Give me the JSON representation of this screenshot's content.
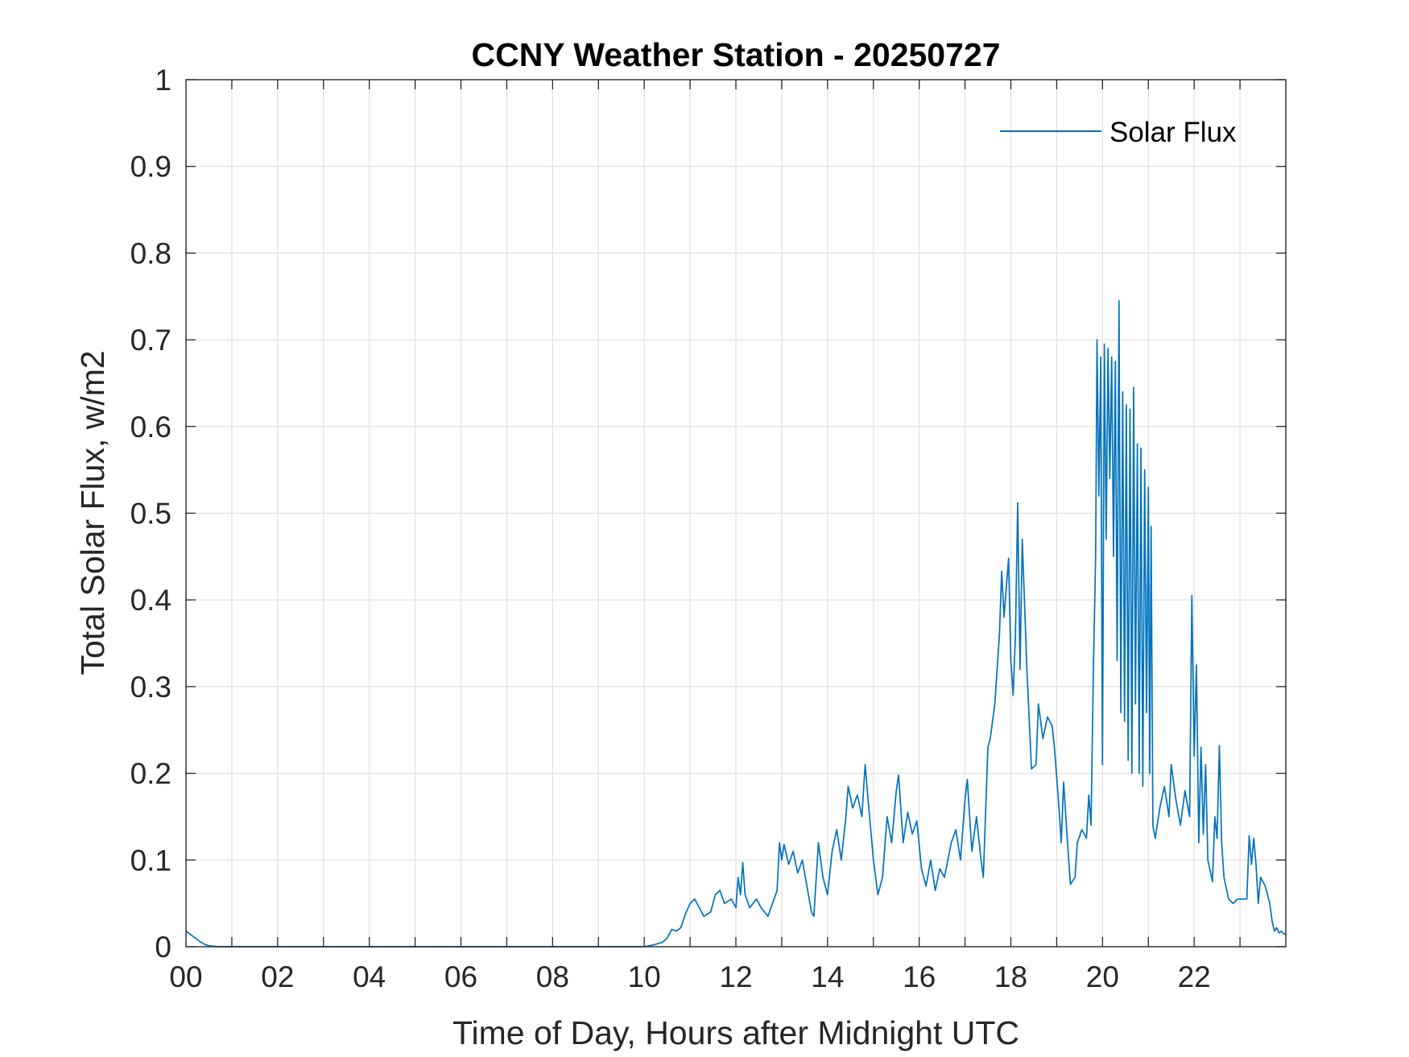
{
  "chart_data": {
    "type": "line",
    "title": "CCNY Weather Station - 20250727",
    "xlabel": "Time of Day, Hours after Midnight UTC",
    "ylabel": "Total Solar Flux, w/m2",
    "xlim": [
      0,
      24
    ],
    "ylim": [
      0,
      1
    ],
    "xticks": [
      0,
      2,
      4,
      6,
      8,
      10,
      12,
      14,
      16,
      18,
      20,
      22
    ],
    "xtick_labels": [
      "00",
      "02",
      "04",
      "06",
      "08",
      "10",
      "12",
      "14",
      "16",
      "18",
      "20",
      "22"
    ],
    "yticks": [
      0,
      0.1,
      0.2,
      0.3,
      0.4,
      0.5,
      0.6,
      0.7,
      0.8,
      0.9,
      1
    ],
    "ytick_labels": [
      "0",
      "0.1",
      "0.2",
      "0.3",
      "0.4",
      "0.5",
      "0.6",
      "0.7",
      "0.8",
      "0.9",
      "1"
    ],
    "grid": true,
    "legend": {
      "location": "top-right",
      "entries": [
        "Solar Flux"
      ]
    },
    "colors": {
      "series": "#0072BD",
      "axis": "#262626",
      "grid": "#e0e0e0"
    },
    "series": [
      {
        "name": "Solar Flux",
        "points": [
          [
            0.0,
            0.018
          ],
          [
            0.1,
            0.014
          ],
          [
            0.2,
            0.01
          ],
          [
            0.3,
            0.006
          ],
          [
            0.4,
            0.003
          ],
          [
            0.5,
            0.001
          ],
          [
            0.7,
            0.0
          ],
          [
            5.0,
            0.0
          ],
          [
            10.0,
            0.0
          ],
          [
            10.2,
            0.002
          ],
          [
            10.4,
            0.005
          ],
          [
            10.5,
            0.01
          ],
          [
            10.6,
            0.02
          ],
          [
            10.7,
            0.018
          ],
          [
            10.8,
            0.022
          ],
          [
            10.9,
            0.038
          ],
          [
            11.0,
            0.05
          ],
          [
            11.1,
            0.055
          ],
          [
            11.2,
            0.045
          ],
          [
            11.3,
            0.035
          ],
          [
            11.45,
            0.04
          ],
          [
            11.55,
            0.06
          ],
          [
            11.65,
            0.065
          ],
          [
            11.75,
            0.05
          ],
          [
            11.9,
            0.055
          ],
          [
            12.0,
            0.045
          ],
          [
            12.05,
            0.08
          ],
          [
            12.1,
            0.06
          ],
          [
            12.15,
            0.097
          ],
          [
            12.2,
            0.06
          ],
          [
            12.3,
            0.045
          ],
          [
            12.45,
            0.055
          ],
          [
            12.55,
            0.045
          ],
          [
            12.7,
            0.035
          ],
          [
            12.8,
            0.05
          ],
          [
            12.9,
            0.065
          ],
          [
            12.95,
            0.12
          ],
          [
            13.0,
            0.1
          ],
          [
            13.05,
            0.118
          ],
          [
            13.15,
            0.095
          ],
          [
            13.25,
            0.11
          ],
          [
            13.35,
            0.085
          ],
          [
            13.45,
            0.1
          ],
          [
            13.55,
            0.07
          ],
          [
            13.65,
            0.04
          ],
          [
            13.7,
            0.035
          ],
          [
            13.8,
            0.12
          ],
          [
            13.9,
            0.08
          ],
          [
            14.0,
            0.06
          ],
          [
            14.1,
            0.11
          ],
          [
            14.2,
            0.135
          ],
          [
            14.3,
            0.1
          ],
          [
            14.4,
            0.15
          ],
          [
            14.45,
            0.185
          ],
          [
            14.55,
            0.16
          ],
          [
            14.65,
            0.175
          ],
          [
            14.75,
            0.15
          ],
          [
            14.82,
            0.21
          ],
          [
            14.9,
            0.16
          ],
          [
            15.0,
            0.1
          ],
          [
            15.1,
            0.06
          ],
          [
            15.2,
            0.08
          ],
          [
            15.3,
            0.15
          ],
          [
            15.4,
            0.12
          ],
          [
            15.5,
            0.18
          ],
          [
            15.55,
            0.198
          ],
          [
            15.65,
            0.12
          ],
          [
            15.75,
            0.155
          ],
          [
            15.85,
            0.13
          ],
          [
            15.95,
            0.145
          ],
          [
            16.05,
            0.09
          ],
          [
            16.15,
            0.07
          ],
          [
            16.25,
            0.1
          ],
          [
            16.35,
            0.065
          ],
          [
            16.45,
            0.09
          ],
          [
            16.55,
            0.08
          ],
          [
            16.7,
            0.12
          ],
          [
            16.8,
            0.135
          ],
          [
            16.9,
            0.1
          ],
          [
            17.0,
            0.17
          ],
          [
            17.05,
            0.193
          ],
          [
            17.15,
            0.11
          ],
          [
            17.25,
            0.15
          ],
          [
            17.35,
            0.1
          ],
          [
            17.4,
            0.08
          ],
          [
            17.5,
            0.23
          ],
          [
            17.55,
            0.24
          ],
          [
            17.65,
            0.28
          ],
          [
            17.75,
            0.36
          ],
          [
            17.8,
            0.433
          ],
          [
            17.85,
            0.38
          ],
          [
            17.95,
            0.448
          ],
          [
            18.0,
            0.33
          ],
          [
            18.05,
            0.29
          ],
          [
            18.1,
            0.36
          ],
          [
            18.15,
            0.512
          ],
          [
            18.2,
            0.32
          ],
          [
            18.25,
            0.47
          ],
          [
            18.35,
            0.32
          ],
          [
            18.45,
            0.205
          ],
          [
            18.55,
            0.21
          ],
          [
            18.6,
            0.28
          ],
          [
            18.7,
            0.24
          ],
          [
            18.8,
            0.265
          ],
          [
            18.9,
            0.255
          ],
          [
            18.95,
            0.23
          ],
          [
            19.05,
            0.16
          ],
          [
            19.1,
            0.12
          ],
          [
            19.15,
            0.19
          ],
          [
            19.25,
            0.11
          ],
          [
            19.3,
            0.072
          ],
          [
            19.4,
            0.08
          ],
          [
            19.45,
            0.12
          ],
          [
            19.55,
            0.135
          ],
          [
            19.65,
            0.125
          ],
          [
            19.7,
            0.175
          ],
          [
            19.75,
            0.14
          ],
          [
            19.8,
            0.32
          ],
          [
            19.85,
            0.45
          ],
          [
            19.88,
            0.7
          ],
          [
            19.92,
            0.52
          ],
          [
            19.96,
            0.68
          ],
          [
            20.0,
            0.21
          ],
          [
            20.04,
            0.695
          ],
          [
            20.08,
            0.47
          ],
          [
            20.12,
            0.69
          ],
          [
            20.16,
            0.54
          ],
          [
            20.2,
            0.68
          ],
          [
            20.24,
            0.45
          ],
          [
            20.28,
            0.675
          ],
          [
            20.32,
            0.33
          ],
          [
            20.36,
            0.745
          ],
          [
            20.4,
            0.27
          ],
          [
            20.44,
            0.64
          ],
          [
            20.48,
            0.26
          ],
          [
            20.52,
            0.625
          ],
          [
            20.56,
            0.215
          ],
          [
            20.6,
            0.62
          ],
          [
            20.64,
            0.2
          ],
          [
            20.68,
            0.645
          ],
          [
            20.72,
            0.28
          ],
          [
            20.76,
            0.58
          ],
          [
            20.8,
            0.2
          ],
          [
            20.84,
            0.575
          ],
          [
            20.88,
            0.185
          ],
          [
            20.92,
            0.55
          ],
          [
            20.96,
            0.27
          ],
          [
            21.0,
            0.53
          ],
          [
            21.03,
            0.2
          ],
          [
            21.06,
            0.485
          ],
          [
            21.1,
            0.14
          ],
          [
            21.15,
            0.125
          ],
          [
            21.25,
            0.16
          ],
          [
            21.35,
            0.185
          ],
          [
            21.45,
            0.15
          ],
          [
            21.5,
            0.21
          ],
          [
            21.6,
            0.17
          ],
          [
            21.7,
            0.14
          ],
          [
            21.8,
            0.18
          ],
          [
            21.85,
            0.165
          ],
          [
            21.9,
            0.15
          ],
          [
            21.95,
            0.405
          ],
          [
            22.0,
            0.22
          ],
          [
            22.05,
            0.325
          ],
          [
            22.1,
            0.12
          ],
          [
            22.15,
            0.23
          ],
          [
            22.2,
            0.13
          ],
          [
            22.25,
            0.21
          ],
          [
            22.3,
            0.1
          ],
          [
            22.4,
            0.075
          ],
          [
            22.45,
            0.15
          ],
          [
            22.5,
            0.125
          ],
          [
            22.55,
            0.232
          ],
          [
            22.6,
            0.12
          ],
          [
            22.65,
            0.08
          ],
          [
            22.75,
            0.055
          ],
          [
            22.85,
            0.05
          ],
          [
            22.95,
            0.055
          ],
          [
            23.05,
            0.055
          ],
          [
            23.15,
            0.055
          ],
          [
            23.2,
            0.128
          ],
          [
            23.25,
            0.095
          ],
          [
            23.3,
            0.125
          ],
          [
            23.35,
            0.095
          ],
          [
            23.4,
            0.05
          ],
          [
            23.45,
            0.08
          ],
          [
            23.55,
            0.07
          ],
          [
            23.65,
            0.05
          ],
          [
            23.7,
            0.03
          ],
          [
            23.75,
            0.018
          ],
          [
            23.8,
            0.022
          ],
          [
            23.85,
            0.016
          ],
          [
            23.9,
            0.018
          ],
          [
            23.95,
            0.015
          ],
          [
            24.0,
            0.015
          ]
        ]
      }
    ]
  }
}
